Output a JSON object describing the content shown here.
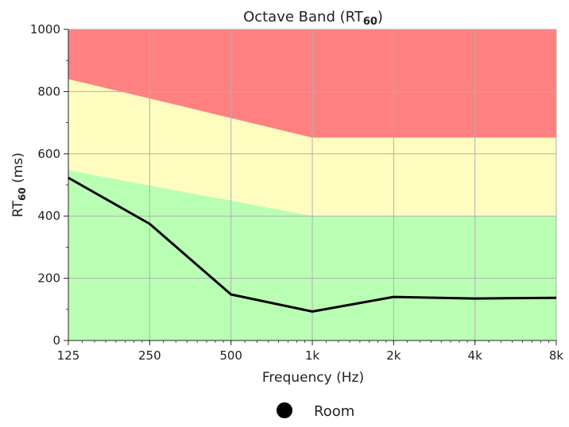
{
  "chart_data": {
    "type": "line",
    "title": "Octave Band (RT",
    "title_subscript": "60",
    "title_close": ")",
    "xlabel": "Frequency (Hz)",
    "ylabel": "RT",
    "ylabel_subscript": "60",
    "ylabel_unit": " (ms)",
    "x": [
      125,
      250,
      500,
      1000,
      2000,
      4000,
      8000
    ],
    "x_tick_labels": [
      "125",
      "250",
      "500",
      "1k",
      "2k",
      "4k",
      "8k"
    ],
    "xscale": "log",
    "xlim": [
      125,
      8000
    ],
    "ylim": [
      0,
      1000
    ],
    "y_ticks": [
      0,
      200,
      400,
      600,
      800,
      1000
    ],
    "grid": true,
    "legend_position": "bottom-center",
    "series": [
      {
        "name": "Room",
        "values": [
          523,
          375,
          148,
          93,
          140,
          135,
          137
        ],
        "color": "#000000"
      }
    ],
    "bands": [
      {
        "name": "green-zone",
        "color": "#b9ffb3",
        "lower": [
          0,
          0,
          0,
          0,
          0,
          0,
          0
        ],
        "upper": [
          548,
          498,
          450,
          400,
          400,
          400,
          400
        ]
      },
      {
        "name": "yellow-zone",
        "color": "#fffcbf",
        "lower": [
          548,
          498,
          450,
          400,
          400,
          400,
          400
        ],
        "upper": [
          840,
          778,
          715,
          652,
          652,
          652,
          652
        ]
      },
      {
        "name": "red-zone",
        "color": "#ff8080",
        "lower": [
          840,
          778,
          715,
          652,
          652,
          652,
          652
        ],
        "upper": [
          1000,
          1000,
          1000,
          1000,
          1000,
          1000,
          1000
        ]
      }
    ]
  }
}
